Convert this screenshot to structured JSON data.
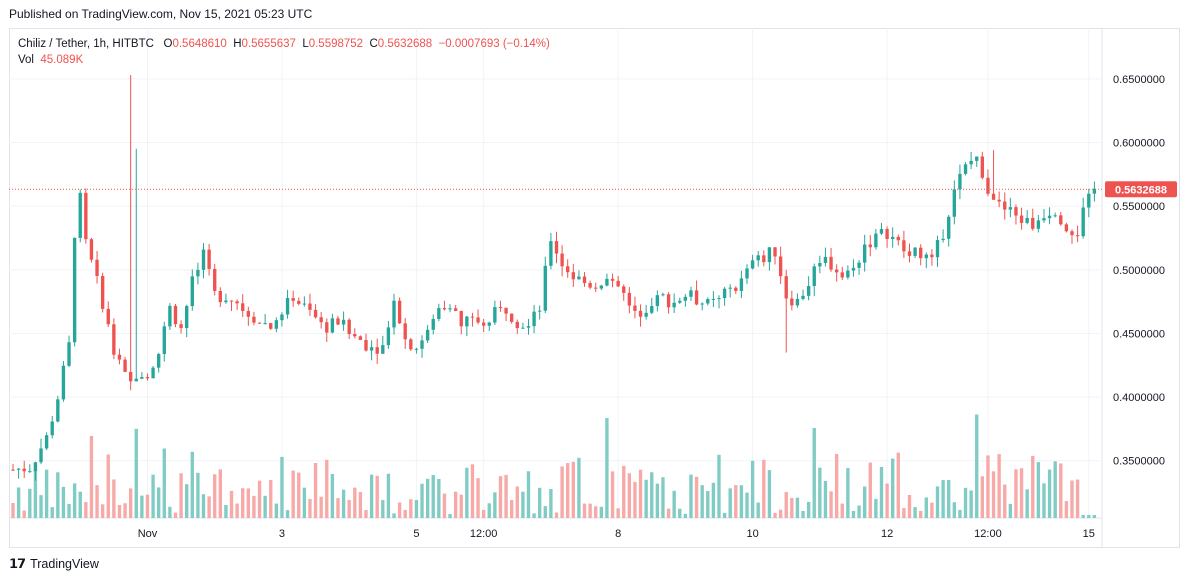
{
  "header": {
    "published": "Published on TradingView.com, Nov 15, 2021 05:23 UTC"
  },
  "legend": {
    "symbol": "Chiliz / Tether, 1h, HITBTC",
    "o_label": "O",
    "o": "0.5648610",
    "h_label": "H",
    "h": "0.5655637",
    "l_label": "L",
    "l": "0.5598752",
    "c_label": "C",
    "c": "0.5632688",
    "change": "−0.0007693 (−0.14%)",
    "vol_label": "Vol",
    "vol": "45.089K"
  },
  "footer": {
    "logo_glyph": "𝟭𝟳",
    "brand": "TradingView"
  },
  "colors": {
    "up": "#26a69a",
    "down": "#ef5350",
    "vol_up": "#80cbc4",
    "vol_down": "#f7a9a7",
    "grid": "#f0f3fa"
  },
  "chart_data": {
    "type": "candlestick",
    "symbol": "Chiliz / Tether",
    "interval": "1h",
    "exchange": "HITBTC",
    "last_price": "0.5632688",
    "last_price_value": 0.5632688,
    "ylim": [
      0.305,
      0.69
    ],
    "y_ticks": [
      {
        "value": 0.65,
        "label": "0.6500000"
      },
      {
        "value": 0.6,
        "label": "0.6000000"
      },
      {
        "value": 0.55,
        "label": "0.5500000"
      },
      {
        "value": 0.5,
        "label": "0.5000000"
      },
      {
        "value": 0.45,
        "label": "0.4500000"
      },
      {
        "value": 0.4,
        "label": "0.4000000"
      },
      {
        "value": 0.35,
        "label": "0.3500000"
      }
    ],
    "x_ticks": [
      {
        "index": 24,
        "label": "Nov"
      },
      {
        "index": 48,
        "label": "3"
      },
      {
        "index": 72,
        "label": "5"
      },
      {
        "index": 84,
        "label": "12:00"
      },
      {
        "index": 108,
        "label": "8"
      },
      {
        "index": 132,
        "label": "10"
      },
      {
        "index": 156,
        "label": "12"
      },
      {
        "index": 174,
        "label": "12:00"
      },
      {
        "index": 192,
        "label": "15"
      }
    ],
    "bar_count": 194,
    "path_x": [
      0,
      3,
      6,
      8,
      10,
      11,
      12,
      13,
      14,
      16,
      18,
      20,
      21,
      22,
      24,
      26,
      28,
      30,
      32,
      34,
      36,
      38,
      40,
      42,
      44,
      46,
      48,
      50,
      52,
      54,
      56,
      58,
      60,
      62,
      64,
      66,
      68,
      70,
      72,
      74,
      76,
      78,
      80,
      82,
      84,
      86,
      88,
      90,
      92,
      94,
      96,
      98,
      100,
      102,
      104,
      106,
      108,
      110,
      112,
      114,
      116,
      118,
      120,
      122,
      124,
      126,
      128,
      130,
      132,
      134,
      136,
      138,
      140,
      142,
      144,
      146,
      148,
      150,
      152,
      154,
      156,
      158,
      160,
      162,
      164,
      166,
      168,
      170,
      172,
      174,
      176,
      178,
      180,
      182,
      184,
      186,
      188,
      190,
      191,
      193
    ],
    "path_close": [
      0.343,
      0.345,
      0.368,
      0.4,
      0.44,
      0.53,
      0.555,
      0.52,
      0.505,
      0.475,
      0.435,
      0.415,
      0.41,
      0.42,
      0.42,
      0.435,
      0.47,
      0.455,
      0.49,
      0.51,
      0.48,
      0.48,
      0.475,
      0.465,
      0.46,
      0.455,
      0.465,
      0.48,
      0.47,
      0.462,
      0.455,
      0.46,
      0.45,
      0.445,
      0.44,
      0.44,
      0.48,
      0.445,
      0.44,
      0.45,
      0.47,
      0.475,
      0.455,
      0.465,
      0.455,
      0.465,
      0.47,
      0.46,
      0.455,
      0.47,
      0.525,
      0.505,
      0.495,
      0.49,
      0.488,
      0.495,
      0.49,
      0.47,
      0.468,
      0.475,
      0.478,
      0.475,
      0.48,
      0.477,
      0.472,
      0.475,
      0.485,
      0.49,
      0.505,
      0.51,
      0.515,
      0.48,
      0.475,
      0.49,
      0.51,
      0.505,
      0.495,
      0.5,
      0.52,
      0.525,
      0.53,
      0.52,
      0.51,
      0.515,
      0.505,
      0.53,
      0.565,
      0.58,
      0.59,
      0.565,
      0.55,
      0.545,
      0.54,
      0.535,
      0.545,
      0.548,
      0.535,
      0.53,
      0.545,
      0.563
    ]
  }
}
